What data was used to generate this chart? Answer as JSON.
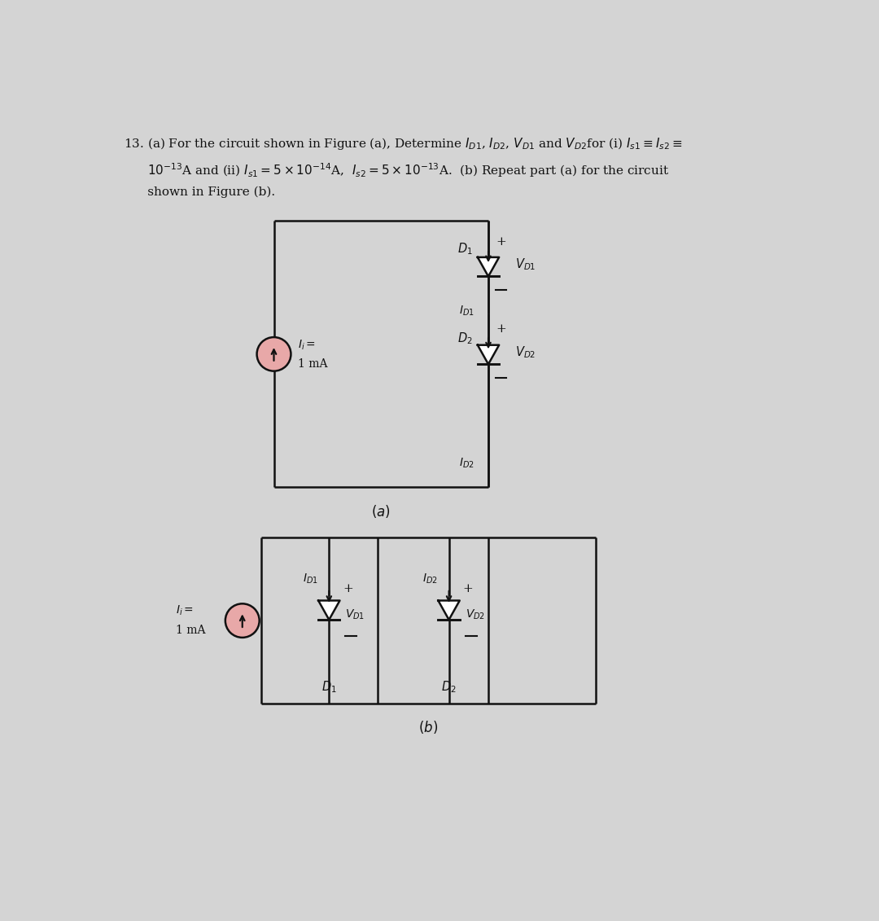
{
  "bg_color": "#d4d4d4",
  "text_color": "#111111",
  "lc": "#111111",
  "cs_fill": "#e8a8a8",
  "header_line1": "13. (a) For the circuit shown in Figure (a), Determine $I_{D1}$, $I_{D2}$, $V_{D1}$ and $V_{D2}$for (i) $I_{s1} \\equiv I_{s2} \\equiv$",
  "header_line2": "      $10^{-13}$A and (ii) $I_{s1} = 5 \\times 10^{-14}$A,  $I_{s2} = 5 \\times 10^{-13}$A. (b) Repeat part (a) for the circuit",
  "header_line3": "      shown in Figure (b).",
  "label_a": "(a)",
  "label_b": "(b)",
  "figw": 10.8,
  "figh": 11.31,
  "dpi": 100
}
